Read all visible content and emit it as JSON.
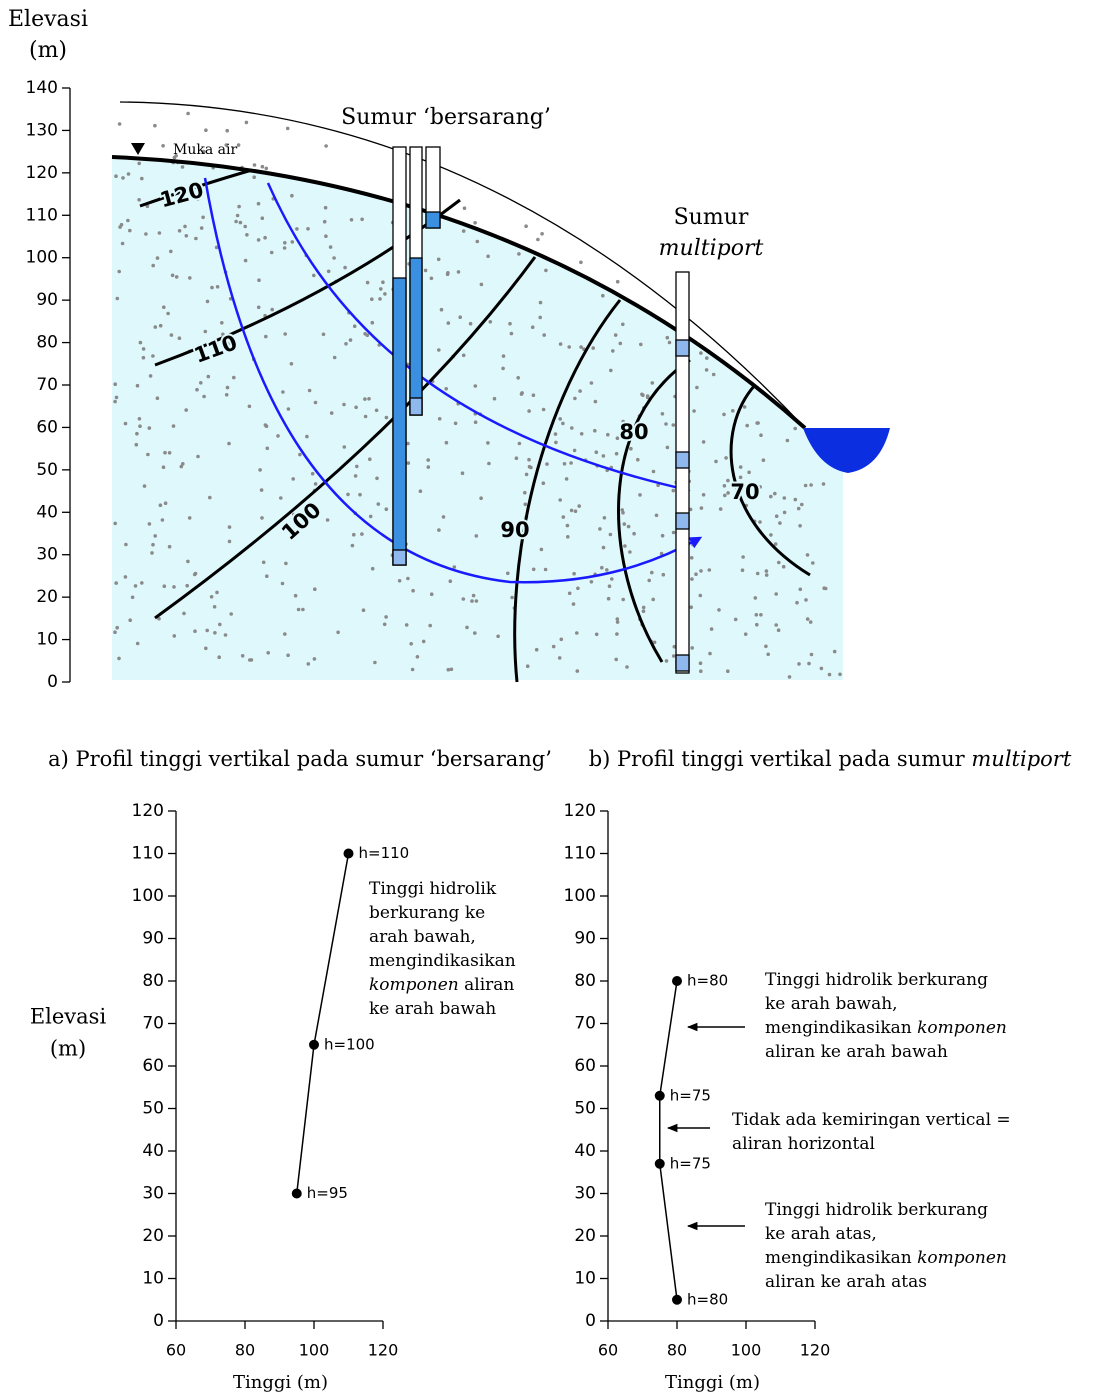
{
  "chart_data": [
    {
      "type": "cross-section",
      "ylabel_lines": [
        "Elevasi",
        "(m)"
      ],
      "ylim": [
        0,
        140
      ],
      "yticks": [
        0,
        10,
        20,
        30,
        40,
        50,
        60,
        70,
        80,
        90,
        100,
        110,
        120,
        130,
        140
      ],
      "contour_labels": [
        120,
        110,
        100,
        90,
        80,
        70
      ],
      "annotations": [
        [
          [
            "Muka air"
          ]
        ],
        [
          [
            "Sumur ‘bersarang’"
          ]
        ],
        [
          [
            "Sumur"
          ],
          [
            {
              "text": "multiport",
              "italic": true
            }
          ]
        ]
      ]
    },
    {
      "type": "line",
      "title": [
        "a) Profil tinggi vertikal pada sumur ‘bersarang’"
      ],
      "xlabel": "Tinggi (m)",
      "ylabel_lines": [
        "Elevasi",
        "(m)"
      ],
      "xlim": [
        60,
        120
      ],
      "xticks": [
        60,
        80,
        100,
        120
      ],
      "ylim": [
        0,
        120
      ],
      "yticks": [
        0,
        10,
        20,
        30,
        40,
        50,
        60,
        70,
        80,
        90,
        100,
        110,
        120
      ],
      "series": [
        {
          "color": "#000000",
          "x": [
            110,
            100,
            95
          ],
          "values": [
            110,
            65,
            30
          ],
          "point_labels": [
            "h=110",
            "h=100",
            "h=95"
          ]
        }
      ],
      "annotations": [
        [
          [
            "Tinggi hidrolik"
          ],
          [
            "berkurang ke"
          ],
          [
            "arah bawah,"
          ],
          [
            "mengindikasikan"
          ],
          [
            {
              "text": "komponen",
              "italic": true
            },
            " aliran"
          ],
          [
            "ke arah bawah"
          ]
        ]
      ]
    },
    {
      "type": "line",
      "title": [
        "b) Profil tinggi vertikal pada sumur ",
        {
          "text": "multiport",
          "italic": true
        }
      ],
      "xlabel": "Tinggi (m)",
      "xlim": [
        60,
        120
      ],
      "xticks": [
        60,
        80,
        100,
        120
      ],
      "ylim": [
        0,
        120
      ],
      "yticks": [
        0,
        10,
        20,
        30,
        40,
        50,
        60,
        70,
        80,
        90,
        100,
        110,
        120
      ],
      "series": [
        {
          "color": "#000000",
          "x": [
            80,
            75,
            75,
            80
          ],
          "values": [
            80,
            53,
            37,
            5
          ],
          "point_labels": [
            "h=80",
            "h=75",
            "h=75",
            "h=80"
          ]
        }
      ],
      "annotations": [
        [
          [
            "Tinggi hidrolik berkurang"
          ],
          [
            "ke arah bawah,"
          ],
          [
            "mengindikasikan ",
            {
              "text": "komponen",
              "italic": true
            }
          ],
          [
            "aliran ke arah bawah"
          ]
        ],
        [
          [
            "Tidak ada kemiringan vertical ="
          ],
          [
            "aliran horizontal"
          ]
        ],
        [
          [
            "Tinggi hidrolik berkurang"
          ],
          [
            "ke arah atas,"
          ],
          [
            "mengindikasikan ",
            {
              "text": "komponen",
              "italic": true
            }
          ],
          [
            "aliran ke arah atas"
          ]
        ]
      ]
    }
  ]
}
